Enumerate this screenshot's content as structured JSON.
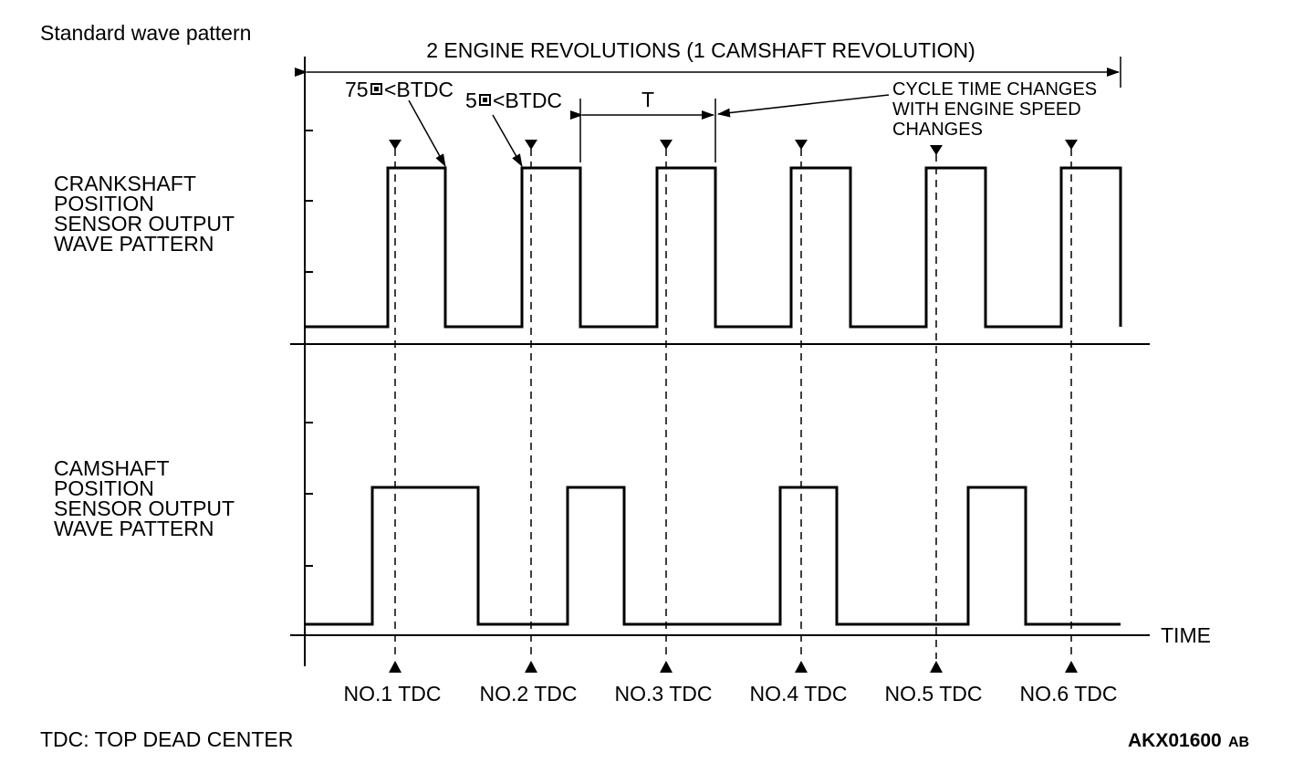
{
  "header": {
    "title": "Standard wave pattern"
  },
  "span": {
    "label": "2 ENGINE REVOLUTIONS (1 CAMSHAFT REVOLUTION)"
  },
  "annotations": {
    "btdc75": "75",
    "btdc5": "5",
    "btdc_suffix": "<BTDC",
    "period": "T",
    "cycle_note": [
      "CYCLE TIME CHANGES",
      "WITH ENGINE SPEED",
      "CHANGES"
    ]
  },
  "crank": {
    "label": [
      "CRANKSHAFT",
      "POSITION",
      "SENSOR OUTPUT",
      "WAVE PATTERN"
    ],
    "pulses": [
      [
        425,
        488
      ],
      [
        572,
        636
      ],
      [
        720,
        784
      ],
      [
        867,
        932
      ],
      [
        1015,
        1080
      ],
      [
        1163,
        1228
      ]
    ]
  },
  "cam": {
    "label": [
      "CAMSHAFT",
      "POSITION",
      "SENSOR OUTPUT",
      "WAVE PATTERN"
    ],
    "pulses": [
      [
        408,
        524
      ],
      [
        622,
        684
      ],
      [
        855,
        917
      ],
      [
        1061,
        1124
      ]
    ]
  },
  "axis": {
    "time_label": "TIME"
  },
  "tdc": {
    "labels": [
      "NO.1 TDC",
      "NO.2 TDC",
      "NO.3 TDC",
      "NO.4 TDC",
      "NO.5 TDC",
      "NO.6 TDC"
    ]
  },
  "footer": {
    "legend": "TDC: TOP DEAD CENTER",
    "code_main": "AKX01600",
    "code_suffix": "AB"
  }
}
